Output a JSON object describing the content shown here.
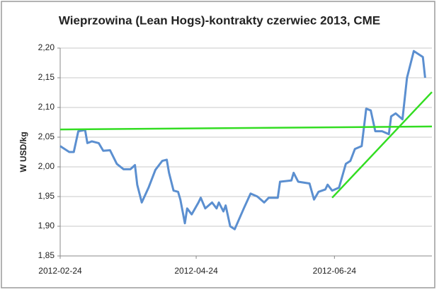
{
  "chart_data": {
    "type": "line",
    "title": "Wieprzowina (Lean Hogs)-kontrakty czerwiec 2013, CME",
    "y_label": "W USD/kg",
    "series": [
      {
        "name": "Lean Hogs",
        "color": "#5b8fd0",
        "x": [
          "2012-02-24",
          "2012-02-28",
          "2012-03-01",
          "2012-03-03",
          "2012-03-06",
          "2012-03-07",
          "2012-03-09",
          "2012-03-12",
          "2012-03-14",
          "2012-03-17",
          "2012-03-20",
          "2012-03-23",
          "2012-03-26",
          "2012-03-28",
          "2012-03-29",
          "2012-03-31",
          "2012-04-03",
          "2012-04-06",
          "2012-04-09",
          "2012-04-11",
          "2012-04-12",
          "2012-04-14",
          "2012-04-16",
          "2012-04-17",
          "2012-04-19",
          "2012-04-20",
          "2012-04-22",
          "2012-04-25",
          "2012-04-26",
          "2012-04-28",
          "2012-05-01",
          "2012-05-03",
          "2012-05-04",
          "2012-05-06",
          "2012-05-07",
          "2012-05-09",
          "2012-05-11",
          "2012-05-15",
          "2012-05-18",
          "2012-05-21",
          "2012-05-24",
          "2012-05-26",
          "2012-05-30",
          "2012-05-31",
          "2012-06-05",
          "2012-06-06",
          "2012-06-08",
          "2012-06-13",
          "2012-06-15",
          "2012-06-17",
          "2012-06-20",
          "2012-06-21",
          "2012-06-23",
          "2012-06-26",
          "2012-06-29",
          "2012-07-01",
          "2012-07-03",
          "2012-07-06",
          "2012-07-08",
          "2012-07-10",
          "2012-07-12",
          "2012-07-15",
          "2012-07-18",
          "2012-07-19",
          "2012-07-21",
          "2012-07-24",
          "2012-07-26",
          "2012-07-29",
          "2012-08-02",
          "2012-08-03"
        ],
        "values": [
          2.035,
          2.025,
          2.025,
          2.06,
          2.062,
          2.04,
          2.043,
          2.04,
          2.027,
          2.028,
          2.005,
          1.996,
          1.996,
          2.003,
          1.97,
          1.94,
          1.965,
          1.995,
          2.01,
          2.012,
          1.99,
          1.96,
          1.958,
          1.945,
          1.905,
          1.93,
          1.92,
          1.94,
          1.948,
          1.93,
          1.94,
          1.93,
          1.94,
          1.925,
          1.935,
          1.9,
          1.895,
          1.93,
          1.955,
          1.95,
          1.94,
          1.948,
          1.948,
          1.975,
          1.977,
          1.99,
          1.975,
          1.972,
          1.945,
          1.958,
          1.962,
          1.97,
          1.96,
          1.965,
          2.005,
          2.01,
          2.03,
          2.035,
          2.098,
          2.095,
          2.06,
          2.06,
          2.055,
          2.085,
          2.09,
          2.08,
          2.15,
          2.195,
          2.185,
          2.15
        ]
      }
    ],
    "lines": [
      {
        "color": "#33dd22",
        "x": [
          "2012-02-24",
          "2012-08-06"
        ],
        "y": [
          2.063,
          2.068
        ]
      },
      {
        "color": "#33dd22",
        "x": [
          "2012-06-23",
          "2012-08-06"
        ],
        "y": [
          1.948,
          2.126
        ]
      }
    ],
    "xlim": [
      "2012-02-24",
      "2012-08-06"
    ],
    "xticks": [
      "2012-02-24",
      "2012-04-24",
      "2012-06-24"
    ],
    "ylim": [
      1.85,
      2.2
    ],
    "yticks": [
      {
        "value": 1.85,
        "label": "1,85"
      },
      {
        "value": 1.9,
        "label": "1,90"
      },
      {
        "value": 1.95,
        "label": "1,95"
      },
      {
        "value": 2.0,
        "label": "2,00"
      },
      {
        "value": 2.05,
        "label": "2,05"
      },
      {
        "value": 2.1,
        "label": "2,10"
      },
      {
        "value": 2.15,
        "label": "2,15"
      },
      {
        "value": 2.2,
        "label": "2,20"
      }
    ],
    "grid": true
  }
}
